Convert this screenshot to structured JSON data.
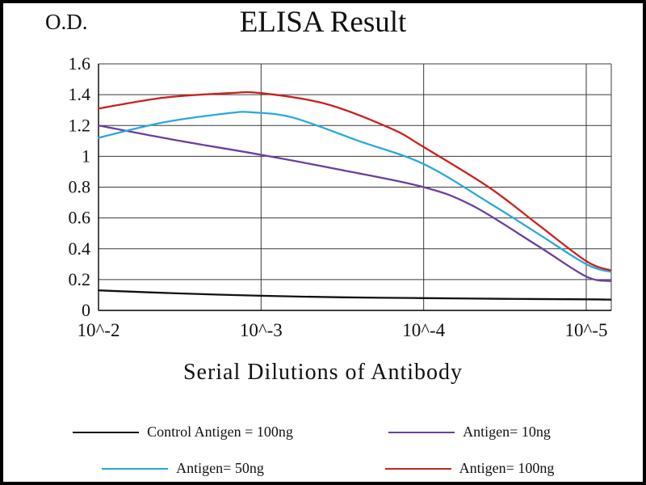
{
  "chart_data": {
    "type": "line",
    "title": "ELISA Result",
    "ylabel": "O.D.",
    "xlabel": "Serial Dilutions  of Antibody",
    "x_tick_labels": [
      "10^-2",
      "10^-3",
      "10^-4",
      "10^-5"
    ],
    "y_tick_labels": [
      "0",
      "0.2",
      "0.4",
      "0.6",
      "0.8",
      "1",
      "1.2",
      "1.4",
      "1.6"
    ],
    "y_ticks": [
      0,
      0.2,
      0.4,
      0.6,
      0.8,
      1.0,
      1.2,
      1.4,
      1.6
    ],
    "ylim": [
      0,
      1.6
    ],
    "grid": true,
    "legend_position": "bottom",
    "series": [
      {
        "name": "Control Antigen = 100ng",
        "color": "#111111",
        "values_at_ticks": [
          0.13,
          0.09,
          0.08,
          0.07
        ],
        "curve_points": [
          [
            0,
            0.13
          ],
          [
            0.5,
            0.11
          ],
          [
            1.0,
            0.095
          ],
          [
            1.5,
            0.085
          ],
          [
            2.0,
            0.08
          ],
          [
            2.5,
            0.075
          ],
          [
            3.0,
            0.072
          ],
          [
            3.15,
            0.07
          ]
        ]
      },
      {
        "name": "Antigen= 10ng",
        "color": "#6b3fa0",
        "values_at_ticks": [
          1.2,
          1.01,
          0.8,
          0.21
        ],
        "curve_points": [
          [
            0,
            1.2
          ],
          [
            0.5,
            1.1
          ],
          [
            1.0,
            1.01
          ],
          [
            1.5,
            0.91
          ],
          [
            2.0,
            0.8
          ],
          [
            2.3,
            0.68
          ],
          [
            2.7,
            0.42
          ],
          [
            3.0,
            0.22
          ],
          [
            3.15,
            0.19
          ]
        ]
      },
      {
        "name": "Antigen= 50ng",
        "color": "#29a8dc",
        "values_at_ticks": [
          1.12,
          1.28,
          0.95,
          0.28
        ],
        "curve_points": [
          [
            0,
            1.12
          ],
          [
            0.4,
            1.22
          ],
          [
            0.8,
            1.28
          ],
          [
            0.95,
            1.285
          ],
          [
            1.2,
            1.25
          ],
          [
            1.6,
            1.1
          ],
          [
            2.0,
            0.95
          ],
          [
            2.4,
            0.7
          ],
          [
            2.7,
            0.5
          ],
          [
            3.0,
            0.3
          ],
          [
            3.15,
            0.25
          ]
        ]
      },
      {
        "name": "Antigen= 100ng",
        "color": "#cc2020",
        "values_at_ticks": [
          1.3,
          1.41,
          1.05,
          0.3
        ],
        "curve_points": [
          [
            0,
            1.31
          ],
          [
            0.4,
            1.38
          ],
          [
            0.8,
            1.41
          ],
          [
            1.0,
            1.41
          ],
          [
            1.4,
            1.34
          ],
          [
            1.8,
            1.18
          ],
          [
            2.0,
            1.06
          ],
          [
            2.4,
            0.8
          ],
          [
            2.7,
            0.56
          ],
          [
            3.0,
            0.32
          ],
          [
            3.15,
            0.26
          ]
        ]
      }
    ]
  },
  "colors": {
    "frame": "#000000",
    "background": "#ffffff",
    "grid": "#3a3a3a",
    "text": "#111111"
  }
}
